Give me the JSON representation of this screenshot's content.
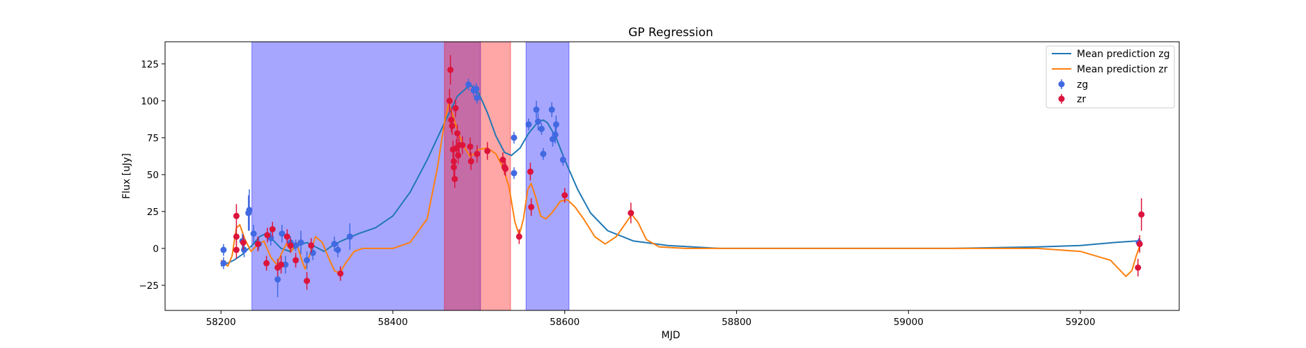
{
  "chart_data": {
    "type": "scatter",
    "title": "GP Regression",
    "xlabel": "MJD",
    "ylabel": "Flux [uJy]",
    "xlim": [
      58135,
      59315
    ],
    "ylim": [
      -42,
      140
    ],
    "x_ticks": [
      58200,
      58400,
      58600,
      58800,
      59000,
      59200
    ],
    "y_ticks": [
      -25,
      0,
      25,
      50,
      75,
      100,
      125
    ],
    "legend_position": "top-right",
    "grid": false,
    "shaded_regions": [
      {
        "x0": 58236,
        "x1": 58502,
        "color": "#0000ff",
        "opacity": 0.35
      },
      {
        "x0": 58460,
        "x1": 58537,
        "color": "#ff0000",
        "opacity": 0.35
      },
      {
        "x0": 58555,
        "x1": 58605,
        "color": "#0000ff",
        "opacity": 0.35
      }
    ],
    "lines": [
      {
        "name": "Mean prediction zg",
        "color": "#1f77b4",
        "points": [
          [
            58200,
            -12
          ],
          [
            58215,
            -8
          ],
          [
            58225,
            -4
          ],
          [
            58236,
            2
          ],
          [
            58245,
            8
          ],
          [
            58252,
            10
          ],
          [
            58260,
            6
          ],
          [
            58270,
            0
          ],
          [
            58280,
            -2
          ],
          [
            58290,
            2
          ],
          [
            58300,
            4
          ],
          [
            58310,
            1
          ],
          [
            58320,
            -2
          ],
          [
            58330,
            2
          ],
          [
            58340,
            5
          ],
          [
            58360,
            10
          ],
          [
            58380,
            14
          ],
          [
            58400,
            22
          ],
          [
            58420,
            38
          ],
          [
            58440,
            60
          ],
          [
            58460,
            85
          ],
          [
            58475,
            103
          ],
          [
            58490,
            111
          ],
          [
            58500,
            105
          ],
          [
            58510,
            92
          ],
          [
            58520,
            76
          ],
          [
            58530,
            65
          ],
          [
            58538,
            63
          ],
          [
            58548,
            68
          ],
          [
            58558,
            78
          ],
          [
            58568,
            85
          ],
          [
            58575,
            87
          ],
          [
            58580,
            85
          ],
          [
            58590,
            75
          ],
          [
            58600,
            60
          ],
          [
            58615,
            40
          ],
          [
            58630,
            24
          ],
          [
            58650,
            12
          ],
          [
            58680,
            5
          ],
          [
            58720,
            2
          ],
          [
            58780,
            0
          ],
          [
            58900,
            0
          ],
          [
            59050,
            0
          ],
          [
            59150,
            1
          ],
          [
            59200,
            2
          ],
          [
            59240,
            4
          ],
          [
            59265,
            5
          ]
        ]
      },
      {
        "name": "Mean prediction zr",
        "color": "#ff7f0e",
        "points": [
          [
            58200,
            -8
          ],
          [
            58208,
            -12
          ],
          [
            58213,
            -5
          ],
          [
            58218,
            14
          ],
          [
            58222,
            16
          ],
          [
            58228,
            6
          ],
          [
            58235,
            -2
          ],
          [
            58242,
            2
          ],
          [
            58250,
            5
          ],
          [
            58258,
            -6
          ],
          [
            58265,
            -11
          ],
          [
            58270,
            -4
          ],
          [
            58276,
            3
          ],
          [
            58282,
            -2
          ],
          [
            58288,
            4
          ],
          [
            58294,
            -8
          ],
          [
            58298,
            -14
          ],
          [
            58303,
            -5
          ],
          [
            58310,
            8
          ],
          [
            58318,
            4
          ],
          [
            58325,
            -6
          ],
          [
            58332,
            -15
          ],
          [
            58338,
            -17
          ],
          [
            58345,
            -10
          ],
          [
            58355,
            -2
          ],
          [
            58365,
            0
          ],
          [
            58380,
            0
          ],
          [
            58400,
            0
          ],
          [
            58420,
            4
          ],
          [
            58440,
            20
          ],
          [
            58452,
            55
          ],
          [
            58460,
            85
          ],
          [
            58465,
            98
          ],
          [
            58470,
            90
          ],
          [
            58475,
            80
          ],
          [
            58482,
            70
          ],
          [
            58490,
            62
          ],
          [
            58500,
            67
          ],
          [
            58510,
            68
          ],
          [
            58520,
            64
          ],
          [
            58528,
            55
          ],
          [
            58535,
            42
          ],
          [
            58542,
            18
          ],
          [
            58547,
            9
          ],
          [
            58552,
            20
          ],
          [
            58557,
            40
          ],
          [
            58561,
            44
          ],
          [
            58566,
            35
          ],
          [
            58572,
            22
          ],
          [
            58578,
            20
          ],
          [
            58585,
            24
          ],
          [
            58595,
            32
          ],
          [
            58603,
            33
          ],
          [
            58612,
            28
          ],
          [
            58622,
            20
          ],
          [
            58635,
            8
          ],
          [
            58647,
            3
          ],
          [
            58660,
            8
          ],
          [
            58672,
            18
          ],
          [
            58678,
            23
          ],
          [
            58685,
            18
          ],
          [
            58695,
            6
          ],
          [
            58710,
            1
          ],
          [
            58740,
            0
          ],
          [
            58800,
            0
          ],
          [
            59000,
            0
          ],
          [
            59150,
            0
          ],
          [
            59200,
            -2
          ],
          [
            59235,
            -8
          ],
          [
            59253,
            -19
          ],
          [
            59260,
            -15
          ],
          [
            59265,
            -5
          ],
          [
            59270,
            3
          ]
        ]
      }
    ],
    "series": [
      {
        "name": "zg",
        "color": "#4169e1",
        "points": [
          {
            "x": 58203,
            "y": -10,
            "err": 4
          },
          {
            "x": 58203,
            "y": -1,
            "err": 4
          },
          {
            "x": 58225,
            "y": 5,
            "err": 5
          },
          {
            "x": 58227,
            "y": -1,
            "err": 5
          },
          {
            "x": 58232,
            "y": 24,
            "err": 12
          },
          {
            "x": 58233,
            "y": 26,
            "err": 14
          },
          {
            "x": 58238,
            "y": 10,
            "err": 6
          },
          {
            "x": 58244,
            "y": 3,
            "err": 4
          },
          {
            "x": 58258,
            "y": 7,
            "err": 5
          },
          {
            "x": 58266,
            "y": -21,
            "err": 12
          },
          {
            "x": 58271,
            "y": 10,
            "err": 6
          },
          {
            "x": 58275,
            "y": -11,
            "err": 6
          },
          {
            "x": 58281,
            "y": 4,
            "err": 4
          },
          {
            "x": 58287,
            "y": 2,
            "err": 4
          },
          {
            "x": 58293,
            "y": 4,
            "err": 8
          },
          {
            "x": 58300,
            "y": -8,
            "err": 6
          },
          {
            "x": 58307,
            "y": -3,
            "err": 5
          },
          {
            "x": 58332,
            "y": 3,
            "err": 5
          },
          {
            "x": 58336,
            "y": -1,
            "err": 5
          },
          {
            "x": 58350,
            "y": 8,
            "err": 9
          },
          {
            "x": 58488,
            "y": 111,
            "err": 4
          },
          {
            "x": 58494,
            "y": 107,
            "err": 4
          },
          {
            "x": 58497,
            "y": 108,
            "err": 4
          },
          {
            "x": 58498,
            "y": 102,
            "err": 4
          },
          {
            "x": 58541,
            "y": 75,
            "err": 4
          },
          {
            "x": 58541,
            "y": 51,
            "err": 4
          },
          {
            "x": 58558,
            "y": 84,
            "err": 4
          },
          {
            "x": 58567,
            "y": 94,
            "err": 6
          },
          {
            "x": 58569,
            "y": 86,
            "err": 6
          },
          {
            "x": 58573,
            "y": 81,
            "err": 4
          },
          {
            "x": 58575,
            "y": 64,
            "err": 4
          },
          {
            "x": 58585,
            "y": 94,
            "err": 5
          },
          {
            "x": 58586,
            "y": 74,
            "err": 5
          },
          {
            "x": 58590,
            "y": 84,
            "err": 6
          },
          {
            "x": 58589,
            "y": 77,
            "err": 6
          },
          {
            "x": 58598,
            "y": 60,
            "err": 4
          },
          {
            "x": 59268,
            "y": 4,
            "err": 3
          }
        ]
      },
      {
        "name": "zr",
        "color": "#dc143c",
        "points": [
          {
            "x": 58218,
            "y": 22,
            "err": 8
          },
          {
            "x": 58218,
            "y": 8,
            "err": 6
          },
          {
            "x": 58218,
            "y": -1,
            "err": 6
          },
          {
            "x": 58226,
            "y": 4,
            "err": 5
          },
          {
            "x": 58243,
            "y": 3,
            "err": 5
          },
          {
            "x": 58253,
            "y": -10,
            "err": 5
          },
          {
            "x": 58254,
            "y": 9,
            "err": 5
          },
          {
            "x": 58260,
            "y": 13,
            "err": 5
          },
          {
            "x": 58266,
            "y": -13,
            "err": 6
          },
          {
            "x": 58270,
            "y": -11,
            "err": 6
          },
          {
            "x": 58277,
            "y": 8,
            "err": 5
          },
          {
            "x": 58281,
            "y": 2,
            "err": 5
          },
          {
            "x": 58287,
            "y": -8,
            "err": 5
          },
          {
            "x": 58300,
            "y": -22,
            "err": 6
          },
          {
            "x": 58305,
            "y": 2,
            "err": 5
          },
          {
            "x": 58339,
            "y": -17,
            "err": 5
          },
          {
            "x": 58466,
            "y": 100,
            "err": 8
          },
          {
            "x": 58467,
            "y": 121,
            "err": 10
          },
          {
            "x": 58468,
            "y": 87,
            "err": 8
          },
          {
            "x": 58469,
            "y": 83,
            "err": 6
          },
          {
            "x": 58470,
            "y": 67,
            "err": 6
          },
          {
            "x": 58471,
            "y": 59,
            "err": 6
          },
          {
            "x": 58471,
            "y": 55,
            "err": 6
          },
          {
            "x": 58472,
            "y": 47,
            "err": 6
          },
          {
            "x": 58473,
            "y": 95,
            "err": 6
          },
          {
            "x": 58474,
            "y": 68,
            "err": 6
          },
          {
            "x": 58475,
            "y": 78,
            "err": 6
          },
          {
            "x": 58476,
            "y": 63,
            "err": 6
          },
          {
            "x": 58477,
            "y": 70,
            "err": 6
          },
          {
            "x": 58481,
            "y": 70,
            "err": 6
          },
          {
            "x": 58490,
            "y": 69,
            "err": 6
          },
          {
            "x": 58491,
            "y": 59,
            "err": 6
          },
          {
            "x": 58498,
            "y": 64,
            "err": 6
          },
          {
            "x": 58510,
            "y": 66,
            "err": 6
          },
          {
            "x": 58528,
            "y": 60,
            "err": 5
          },
          {
            "x": 58530,
            "y": 55,
            "err": 5
          },
          {
            "x": 58531,
            "y": 54,
            "err": 5
          },
          {
            "x": 58547,
            "y": 8,
            "err": 5
          },
          {
            "x": 58560,
            "y": 52,
            "err": 6
          },
          {
            "x": 58561,
            "y": 28,
            "err": 6
          },
          {
            "x": 58600,
            "y": 36,
            "err": 5
          },
          {
            "x": 58677,
            "y": 24,
            "err": 7
          },
          {
            "x": 59267,
            "y": -13,
            "err": 6
          },
          {
            "x": 59269,
            "y": 3,
            "err": 6
          },
          {
            "x": 59271,
            "y": 23,
            "err": 11
          }
        ]
      }
    ]
  }
}
